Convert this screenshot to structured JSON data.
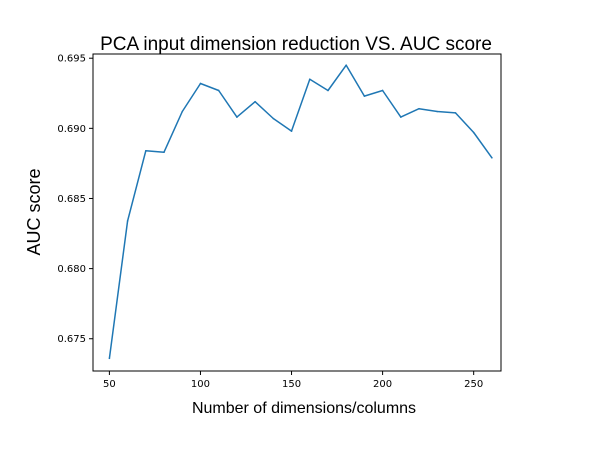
{
  "chart_data": {
    "type": "line",
    "title": "PCA input dimension reduction VS. AUC score",
    "xlabel": "Number of dimensions/columns",
    "ylabel": "AUC score",
    "xlim": [
      41,
      265
    ],
    "ylim": [
      0.6727,
      0.6953
    ],
    "xticks": [
      50,
      100,
      150,
      200,
      250
    ],
    "xtick_labels": [
      "50",
      "100",
      "150",
      "200",
      "250"
    ],
    "yticks": [
      0.675,
      0.68,
      0.685,
      0.69,
      0.695
    ],
    "ytick_labels": [
      "0.675",
      "0.680",
      "0.685",
      "0.690",
      "0.695"
    ],
    "grid": false,
    "series": [
      {
        "color": "#1f77b4",
        "x": [
          50,
          60,
          70,
          80,
          90,
          100,
          110,
          120,
          130,
          140,
          150,
          160,
          170,
          180,
          190,
          200,
          210,
          220,
          230,
          240,
          250,
          260
        ],
        "y": [
          0.6736,
          0.6834,
          0.6884,
          0.6883,
          0.6912,
          0.6932,
          0.6927,
          0.6908,
          0.6919,
          0.6907,
          0.6898,
          0.6935,
          0.6927,
          0.6945,
          0.6923,
          0.6927,
          0.6908,
          0.6914,
          0.6912,
          0.6911,
          0.6897,
          0.6879
        ]
      }
    ]
  }
}
